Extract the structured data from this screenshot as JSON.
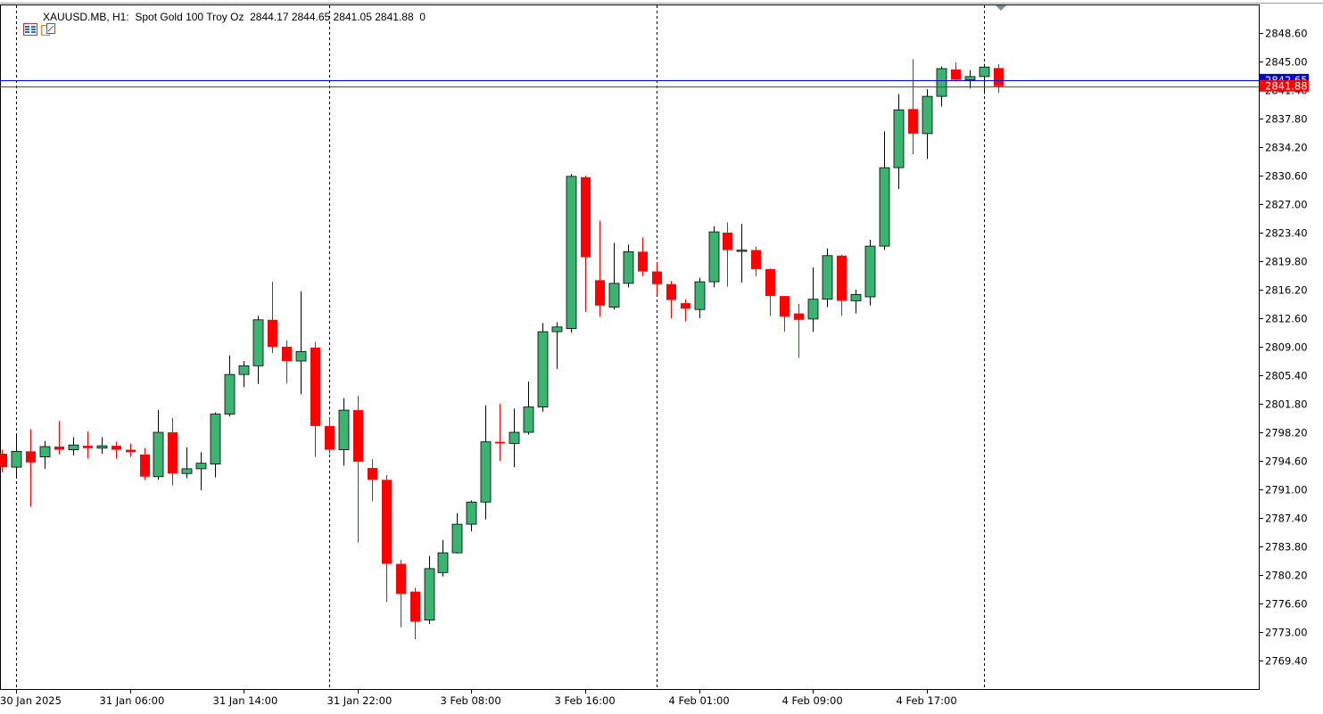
{
  "header": {
    "symbol": "XAUUSD.MB",
    "timeframe": "H1:",
    "description": "Spot Gold 100 Troy Oz",
    "ohlc": "2844.17 2844.65 2841.05 2841.88",
    "volume": "0"
  },
  "icons": [
    "chart-list-icon",
    "indicator-window-icon"
  ],
  "colors": {
    "bull": "#3cb371",
    "bear": "#ff0000",
    "bid_line": "#ff0000",
    "ask_line": "#0000cd",
    "grid": "#000000",
    "background": "#ffffff"
  },
  "price_labels": {
    "bid": "2841.88",
    "ask": "2842.65"
  },
  "chart_data": {
    "type": "candlestick",
    "ylim": [
      2766.2,
      2851.4
    ],
    "yticks": [
      "2848.60",
      "2845.00",
      "2841.40",
      "2837.80",
      "2834.20",
      "2830.60",
      "2827.00",
      "2823.40",
      "2819.80",
      "2816.20",
      "2812.60",
      "2809.00",
      "2805.40",
      "2801.80",
      "2798.20",
      "2794.60",
      "2791.00",
      "2787.40",
      "2783.80",
      "2780.20",
      "2776.60",
      "2773.00",
      "2769.40"
    ],
    "xticks": [
      {
        "bar": 1,
        "label": "30 Jan 2025"
      },
      {
        "bar": 9,
        "label": "31 Jan 06:00"
      },
      {
        "bar": 17,
        "label": "31 Jan 14:00"
      },
      {
        "bar": 25,
        "label": "31 Jan 22:00"
      },
      {
        "bar": 33,
        "label": "3 Feb 08:00"
      },
      {
        "bar": 41,
        "label": "3 Feb 16:00"
      },
      {
        "bar": 49,
        "label": "4 Feb 01:00"
      },
      {
        "bar": 57,
        "label": "4 Feb 09:00"
      },
      {
        "bar": 65,
        "label": "4 Feb 17:00"
      }
    ],
    "separators": [
      1,
      23,
      46,
      69
    ],
    "bid": 2841.88,
    "ask": 2842.65,
    "candles": [
      {
        "o": 2795.5,
        "h": 2796.0,
        "l": 2793.2,
        "c": 2793.8
      },
      {
        "o": 2793.8,
        "h": 2798.0,
        "l": 2792.5,
        "c": 2795.8
      },
      {
        "o": 2795.8,
        "h": 2798.6,
        "l": 2788.8,
        "c": 2794.4
      },
      {
        "o": 2795.1,
        "h": 2797.1,
        "l": 2793.6,
        "c": 2796.4
      },
      {
        "o": 2796.4,
        "h": 2799.6,
        "l": 2795.4,
        "c": 2796.0
      },
      {
        "o": 2796.0,
        "h": 2797.6,
        "l": 2795.3,
        "c": 2796.6
      },
      {
        "o": 2796.5,
        "h": 2798.3,
        "l": 2794.9,
        "c": 2796.2
      },
      {
        "o": 2796.2,
        "h": 2797.6,
        "l": 2795.5,
        "c": 2796.5
      },
      {
        "o": 2796.5,
        "h": 2797.0,
        "l": 2794.9,
        "c": 2796.0
      },
      {
        "o": 2796.0,
        "h": 2796.8,
        "l": 2795.1,
        "c": 2795.7
      },
      {
        "o": 2795.4,
        "h": 2796.2,
        "l": 2792.2,
        "c": 2792.6
      },
      {
        "o": 2792.6,
        "h": 2801.0,
        "l": 2792.2,
        "c": 2798.2
      },
      {
        "o": 2798.2,
        "h": 2800.0,
        "l": 2791.5,
        "c": 2793.0
      },
      {
        "o": 2793.0,
        "h": 2796.3,
        "l": 2792.4,
        "c": 2793.6
      },
      {
        "o": 2793.6,
        "h": 2795.7,
        "l": 2790.9,
        "c": 2794.3
      },
      {
        "o": 2794.2,
        "h": 2800.7,
        "l": 2792.5,
        "c": 2800.5
      },
      {
        "o": 2800.5,
        "h": 2807.9,
        "l": 2800.2,
        "c": 2805.5
      },
      {
        "o": 2805.5,
        "h": 2807.2,
        "l": 2803.9,
        "c": 2806.6
      },
      {
        "o": 2806.6,
        "h": 2812.9,
        "l": 2804.3,
        "c": 2812.4
      },
      {
        "o": 2812.4,
        "h": 2817.2,
        "l": 2808.2,
        "c": 2809.0
      },
      {
        "o": 2809.0,
        "h": 2809.8,
        "l": 2804.4,
        "c": 2807.2
      },
      {
        "o": 2807.2,
        "h": 2816.0,
        "l": 2803.0,
        "c": 2808.4
      },
      {
        "o": 2808.9,
        "h": 2809.6,
        "l": 2795.1,
        "c": 2799.0
      },
      {
        "o": 2799.0,
        "h": 2800.0,
        "l": 2795.5,
        "c": 2796.0
      },
      {
        "o": 2796.0,
        "h": 2802.5,
        "l": 2794.0,
        "c": 2801.0
      },
      {
        "o": 2801.0,
        "h": 2802.8,
        "l": 2784.3,
        "c": 2794.5
      },
      {
        "o": 2793.7,
        "h": 2794.8,
        "l": 2789.5,
        "c": 2792.2
      },
      {
        "o": 2792.2,
        "h": 2792.8,
        "l": 2776.8,
        "c": 2781.6
      },
      {
        "o": 2781.6,
        "h": 2782.1,
        "l": 2773.6,
        "c": 2777.8
      },
      {
        "o": 2778.1,
        "h": 2778.6,
        "l": 2772.1,
        "c": 2774.3
      },
      {
        "o": 2774.5,
        "h": 2782.6,
        "l": 2774.0,
        "c": 2781.0
      },
      {
        "o": 2780.5,
        "h": 2784.6,
        "l": 2780.0,
        "c": 2783.0
      },
      {
        "o": 2783.0,
        "h": 2788.0,
        "l": 2782.9,
        "c": 2786.6
      },
      {
        "o": 2786.6,
        "h": 2789.6,
        "l": 2785.7,
        "c": 2789.4
      },
      {
        "o": 2789.4,
        "h": 2801.6,
        "l": 2787.2,
        "c": 2797.0
      },
      {
        "o": 2797.0,
        "h": 2801.8,
        "l": 2794.6,
        "c": 2796.8
      },
      {
        "o": 2796.8,
        "h": 2801.2,
        "l": 2793.8,
        "c": 2798.2
      },
      {
        "o": 2798.2,
        "h": 2804.6,
        "l": 2797.9,
        "c": 2801.4
      },
      {
        "o": 2801.4,
        "h": 2812.0,
        "l": 2800.8,
        "c": 2810.9
      },
      {
        "o": 2810.9,
        "h": 2812.1,
        "l": 2806.2,
        "c": 2811.5
      },
      {
        "o": 2811.3,
        "h": 2830.8,
        "l": 2810.8,
        "c": 2830.5
      },
      {
        "o": 2830.4,
        "h": 2830.6,
        "l": 2813.4,
        "c": 2820.3
      },
      {
        "o": 2817.4,
        "h": 2824.9,
        "l": 2812.8,
        "c": 2814.2
      },
      {
        "o": 2814.0,
        "h": 2822.1,
        "l": 2813.7,
        "c": 2817.0
      },
      {
        "o": 2817.0,
        "h": 2821.9,
        "l": 2816.5,
        "c": 2821.0
      },
      {
        "o": 2821.0,
        "h": 2822.8,
        "l": 2817.9,
        "c": 2818.5
      },
      {
        "o": 2818.5,
        "h": 2819.6,
        "l": 2815.6,
        "c": 2816.9
      },
      {
        "o": 2816.9,
        "h": 2817.3,
        "l": 2812.6,
        "c": 2814.9
      },
      {
        "o": 2814.5,
        "h": 2815.0,
        "l": 2812.2,
        "c": 2813.8
      },
      {
        "o": 2813.7,
        "h": 2817.7,
        "l": 2812.6,
        "c": 2817.2
      },
      {
        "o": 2817.2,
        "h": 2824.2,
        "l": 2816.5,
        "c": 2823.5
      },
      {
        "o": 2823.4,
        "h": 2824.7,
        "l": 2816.6,
        "c": 2821.2
      },
      {
        "o": 2821.1,
        "h": 2824.5,
        "l": 2817.1,
        "c": 2821.2
      },
      {
        "o": 2821.2,
        "h": 2821.6,
        "l": 2817.9,
        "c": 2818.8
      },
      {
        "o": 2818.8,
        "h": 2818.9,
        "l": 2812.9,
        "c": 2815.4
      },
      {
        "o": 2815.4,
        "h": 2815.4,
        "l": 2810.9,
        "c": 2812.8
      },
      {
        "o": 2813.2,
        "h": 2814.4,
        "l": 2807.6,
        "c": 2812.4
      },
      {
        "o": 2812.5,
        "h": 2819.0,
        "l": 2810.9,
        "c": 2815.0
      },
      {
        "o": 2815.0,
        "h": 2821.4,
        "l": 2814.0,
        "c": 2820.5
      },
      {
        "o": 2820.5,
        "h": 2820.6,
        "l": 2812.9,
        "c": 2814.8
      },
      {
        "o": 2814.8,
        "h": 2816.2,
        "l": 2813.2,
        "c": 2815.6
      },
      {
        "o": 2815.3,
        "h": 2822.5,
        "l": 2814.2,
        "c": 2821.7
      },
      {
        "o": 2821.7,
        "h": 2836.2,
        "l": 2821.2,
        "c": 2831.6
      },
      {
        "o": 2831.6,
        "h": 2840.9,
        "l": 2828.9,
        "c": 2838.9
      },
      {
        "o": 2839.0,
        "h": 2845.3,
        "l": 2833.3,
        "c": 2835.9
      },
      {
        "o": 2835.9,
        "h": 2841.5,
        "l": 2832.7,
        "c": 2840.6
      },
      {
        "o": 2840.6,
        "h": 2844.4,
        "l": 2839.3,
        "c": 2844.1
      },
      {
        "o": 2844.0,
        "h": 2844.9,
        "l": 2842.5,
        "c": 2842.7
      },
      {
        "o": 2842.7,
        "h": 2843.9,
        "l": 2841.6,
        "c": 2843.1
      },
      {
        "o": 2843.1,
        "h": 2844.7,
        "l": 2840.9,
        "c": 2844.3
      },
      {
        "o": 2844.17,
        "h": 2844.65,
        "l": 2841.05,
        "c": 2841.88
      }
    ]
  }
}
